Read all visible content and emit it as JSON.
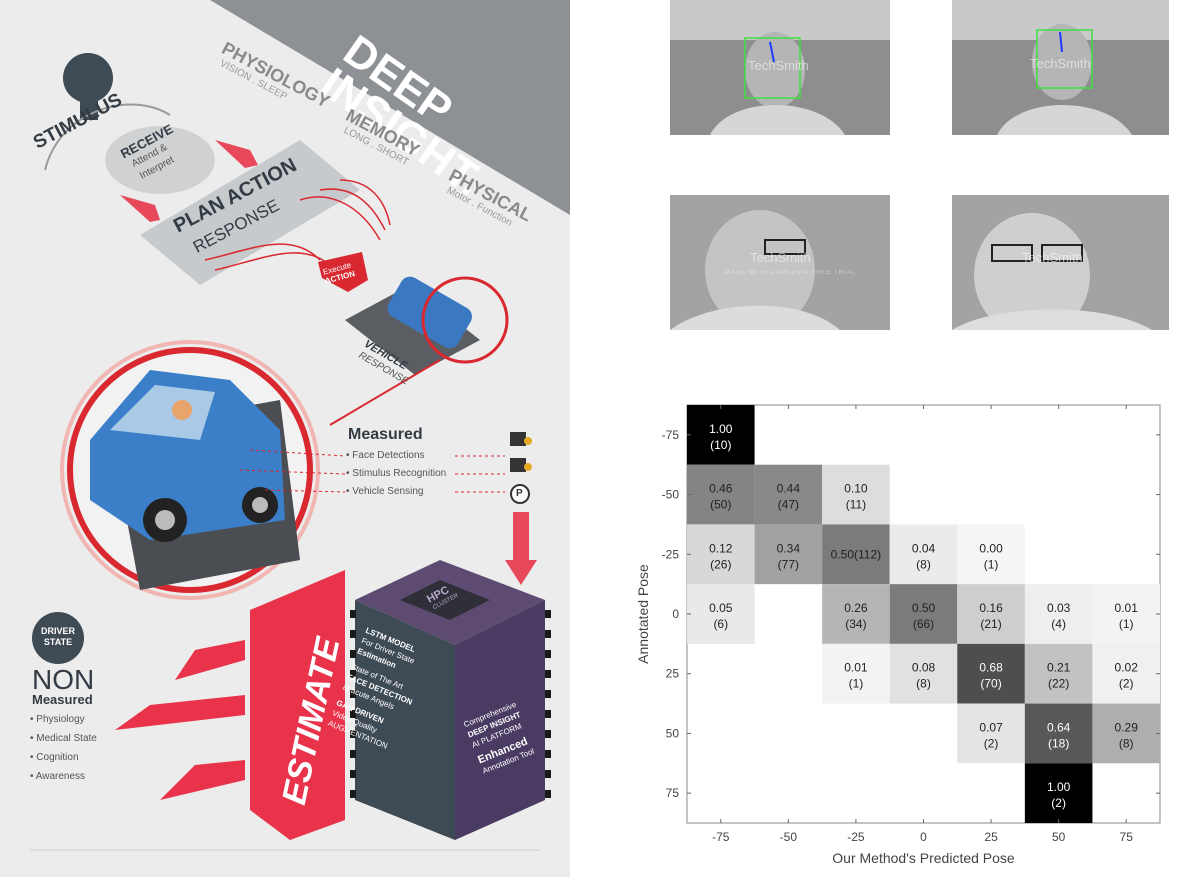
{
  "infographic": {
    "title_line1": "DEEP",
    "title_line2": "INSIGHT.",
    "physiology": "PHYSIOLOGY",
    "physiology_sub": "VISION . SLEEP",
    "memory": "MEMORY",
    "memory_sub": "LONG . SHORT",
    "physical": "PHYSICAL",
    "physical_sub": "Motor . Function",
    "stimulus": "STIMULUS",
    "receive": "RECEIVE",
    "receive_sub1": "Attend &",
    "receive_sub2": "Interpret",
    "plan_action": "PLAN ACTION",
    "response": "RESPONSE",
    "execute": "Execute",
    "action": "ACTION",
    "vehicle": "VEHICLE",
    "vehicle_response": "RESPONSE",
    "measured_title": "Measured",
    "measured_items": [
      "• Face Detections",
      "• Stimulus Recognition",
      "• Vehicle Sensing"
    ],
    "parking_symbol": "P",
    "driver": "DRIVER",
    "state": "STATE",
    "non": "NON",
    "non_measured": "Measured",
    "non_items": [
      "• Physiology",
      "• Medical State",
      "• Cognition",
      "• Awareness"
    ],
    "estimate": "ESTIMATE",
    "hpc1": "HPC",
    "hpc2": "CLUSTER",
    "side1": [
      "LSTM MODEL",
      "For Driver State",
      "Estimation",
      "State of The Art",
      "FACE DETECTION",
      "at acute Angels",
      "GAN DRIVEN",
      "Video Quality",
      "AUGMENTATION"
    ],
    "side2": [
      "Comprehensive",
      "DEEP INSIGHT",
      "AI PLATFORM",
      "Enhanced",
      "Annotation Tool"
    ]
  },
  "photos": {
    "watermark": "TechSmith",
    "watermark_sub": "MADE WITH CAMTASIA FREE TRIAL"
  },
  "chart_data": {
    "type": "heatmap",
    "xlabel": "Our Method's Predicted Pose",
    "ylabel": "Annotated Pose",
    "x_ticks": [
      "-75",
      "-50",
      "-25",
      "0",
      "25",
      "50",
      "75"
    ],
    "y_ticks": [
      "-75",
      "-50",
      "-25",
      "0",
      "25",
      "50",
      "75"
    ],
    "cells": [
      {
        "row": "-75",
        "col": "-75",
        "value": "1.00",
        "count": "(10)",
        "v": 1.0
      },
      {
        "row": "-50",
        "col": "-75",
        "value": "0.46",
        "count": "(50)",
        "v": 0.46
      },
      {
        "row": "-50",
        "col": "-50",
        "value": "0.44",
        "count": "(47)",
        "v": 0.44
      },
      {
        "row": "-50",
        "col": "-25",
        "value": "0.10",
        "count": "(11)",
        "v": 0.1
      },
      {
        "row": "-25",
        "col": "-75",
        "value": "0.12",
        "count": "(26)",
        "v": 0.12
      },
      {
        "row": "-25",
        "col": "-50",
        "value": "0.34",
        "count": "(77)",
        "v": 0.34
      },
      {
        "row": "-25",
        "col": "-25",
        "value": "0.50(112)",
        "count": "",
        "v": 0.5
      },
      {
        "row": "-25",
        "col": "0",
        "value": "0.04",
        "count": "(8)",
        "v": 0.04
      },
      {
        "row": "-25",
        "col": "25",
        "value": "0.00",
        "count": "(1)",
        "v": 0.0
      },
      {
        "row": "0",
        "col": "-75",
        "value": "0.05",
        "count": "(6)",
        "v": 0.05
      },
      {
        "row": "0",
        "col": "-25",
        "value": "0.26",
        "count": "(34)",
        "v": 0.26
      },
      {
        "row": "0",
        "col": "0",
        "value": "0.50",
        "count": "(66)",
        "v": 0.5
      },
      {
        "row": "0",
        "col": "25",
        "value": "0.16",
        "count": "(21)",
        "v": 0.16
      },
      {
        "row": "0",
        "col": "50",
        "value": "0.03",
        "count": "(4)",
        "v": 0.03
      },
      {
        "row": "0",
        "col": "75",
        "value": "0.01",
        "count": "(1)",
        "v": 0.01
      },
      {
        "row": "25",
        "col": "-25",
        "value": "0.01",
        "count": "(1)",
        "v": 0.01
      },
      {
        "row": "25",
        "col": "0",
        "value": "0.08",
        "count": "(8)",
        "v": 0.08
      },
      {
        "row": "25",
        "col": "25",
        "value": "0.68",
        "count": "(70)",
        "v": 0.68
      },
      {
        "row": "25",
        "col": "50",
        "value": "0.21",
        "count": "(22)",
        "v": 0.21
      },
      {
        "row": "25",
        "col": "75",
        "value": "0.02",
        "count": "(2)",
        "v": 0.02
      },
      {
        "row": "50",
        "col": "25",
        "value": "0.07",
        "count": "(2)",
        "v": 0.07
      },
      {
        "row": "50",
        "col": "50",
        "value": "0.64",
        "count": "(18)",
        "v": 0.64
      },
      {
        "row": "50",
        "col": "75",
        "value": "0.29",
        "count": "(8)",
        "v": 0.29
      },
      {
        "row": "75",
        "col": "50",
        "value": "1.00",
        "count": "(2)",
        "v": 1.0
      }
    ]
  }
}
